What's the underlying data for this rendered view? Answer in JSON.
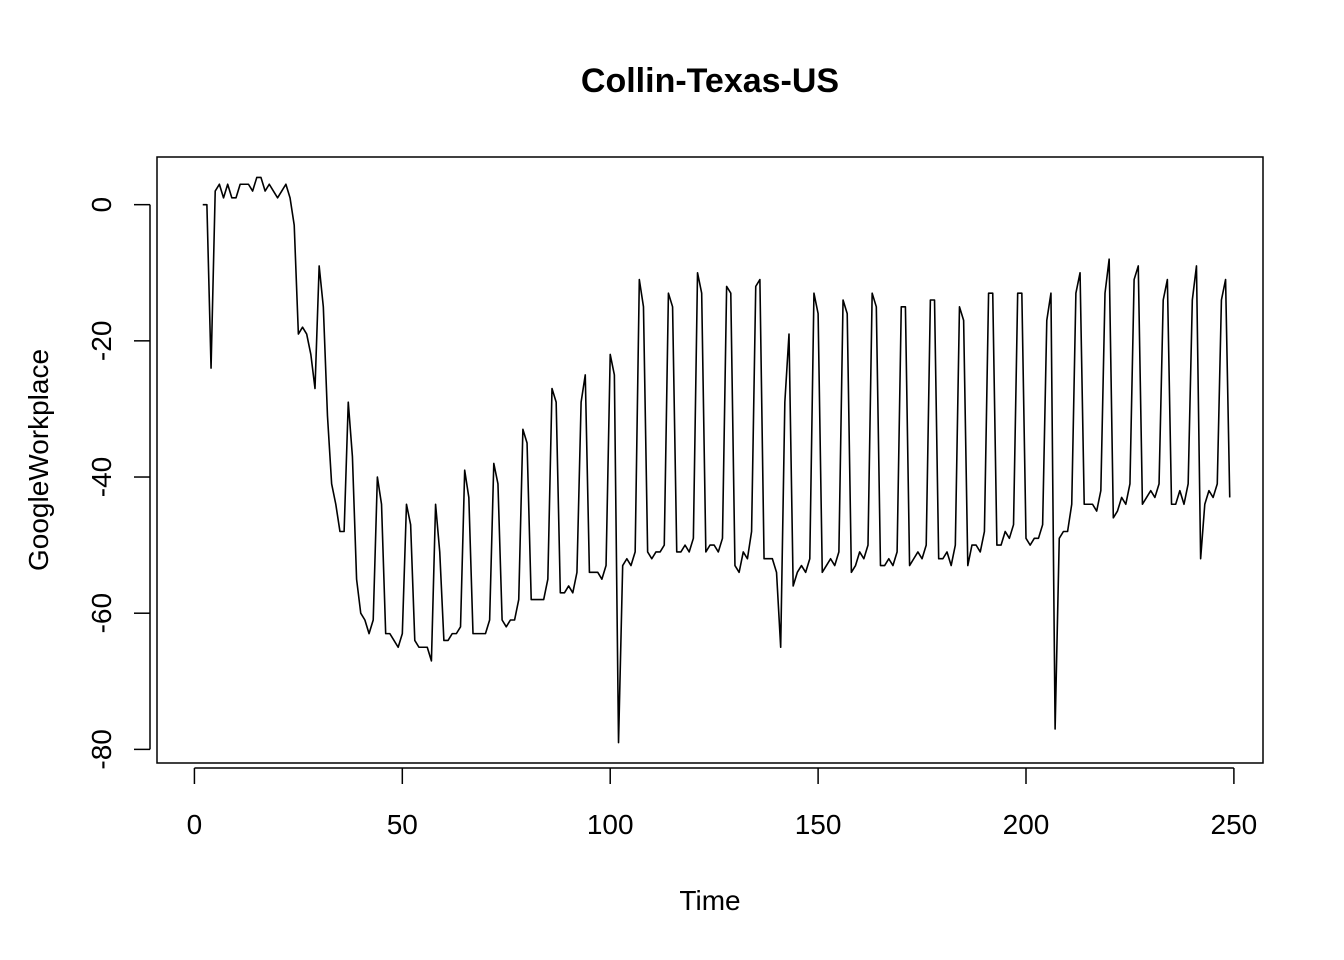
{
  "chart_data": {
    "type": "line",
    "title": "Collin-Texas-US",
    "xlabel": "Time",
    "ylabel": "GoogleWorkplace",
    "xlim": [
      -9,
      257
    ],
    "ylim": [
      -82,
      7
    ],
    "x_ticks": [
      0,
      50,
      100,
      150,
      200,
      250
    ],
    "y_ticks": [
      0,
      -20,
      -40,
      -60,
      -80
    ],
    "grid": false,
    "legend": "none",
    "series": [
      {
        "color": "#000000",
        "x_start": 2,
        "values": [
          0,
          0,
          -24,
          2,
          3,
          1,
          3,
          1,
          1,
          3,
          3,
          3,
          2,
          4,
          4,
          2,
          3,
          2,
          1,
          2,
          3,
          1,
          -3,
          -19,
          -18,
          -19,
          -22,
          -27,
          -9,
          -15,
          -31,
          -41,
          -44,
          -48,
          -48,
          -29,
          -37,
          -55,
          -60,
          -61,
          -63,
          -61,
          -40,
          -44,
          -63,
          -63,
          -64,
          -65,
          -63,
          -44,
          -47,
          -64,
          -65,
          -65,
          -65,
          -67,
          -44,
          -51,
          -64,
          -64,
          -63,
          -63,
          -62,
          -39,
          -43,
          -63,
          -63,
          -63,
          -63,
          -61,
          -38,
          -41,
          -61,
          -62,
          -61,
          -61,
          -58,
          -33,
          -35,
          -58,
          -58,
          -58,
          -58,
          -55,
          -27,
          -29,
          -57,
          -57,
          -56,
          -57,
          -54,
          -29,
          -25,
          -54,
          -54,
          -54,
          -55,
          -53,
          -22,
          -25,
          -79,
          -53,
          -52,
          -53,
          -51,
          -11,
          -15,
          -51,
          -52,
          -51,
          -51,
          -50,
          -13,
          -15,
          -51,
          -51,
          -50,
          -51,
          -49,
          -10,
          -13,
          -51,
          -50,
          -50,
          -51,
          -49,
          -12,
          -13,
          -53,
          -54,
          -51,
          -52,
          -48,
          -12,
          -11,
          -52,
          -52,
          -52,
          -54,
          -65,
          -29,
          -19,
          -56,
          -54,
          -53,
          -54,
          -52,
          -13,
          -16,
          -54,
          -53,
          -52,
          -53,
          -51,
          -14,
          -16,
          -54,
          -53,
          -51,
          -52,
          -50,
          -13,
          -15,
          -53,
          -53,
          -52,
          -53,
          -51,
          -15,
          -15,
          -53,
          -52,
          -51,
          -52,
          -50,
          -14,
          -14,
          -52,
          -52,
          -51,
          -53,
          -50,
          -15,
          -17,
          -53,
          -50,
          -50,
          -51,
          -48,
          -13,
          -13,
          -50,
          -50,
          -48,
          -49,
          -47,
          -13,
          -13,
          -49,
          -50,
          -49,
          -49,
          -47,
          -17,
          -13,
          -77,
          -49,
          -48,
          -48,
          -44,
          -13,
          -10,
          -44,
          -44,
          -44,
          -45,
          -42,
          -13,
          -8,
          -46,
          -45,
          -43,
          -44,
          -41,
          -11,
          -9,
          -44,
          -43,
          -42,
          -43,
          -41,
          -14,
          -11,
          -44,
          -44,
          -42,
          -44,
          -41,
          -14,
          -9,
          -52,
          -44,
          -42,
          -43,
          -41,
          -14,
          -11,
          -43
        ]
      }
    ]
  }
}
